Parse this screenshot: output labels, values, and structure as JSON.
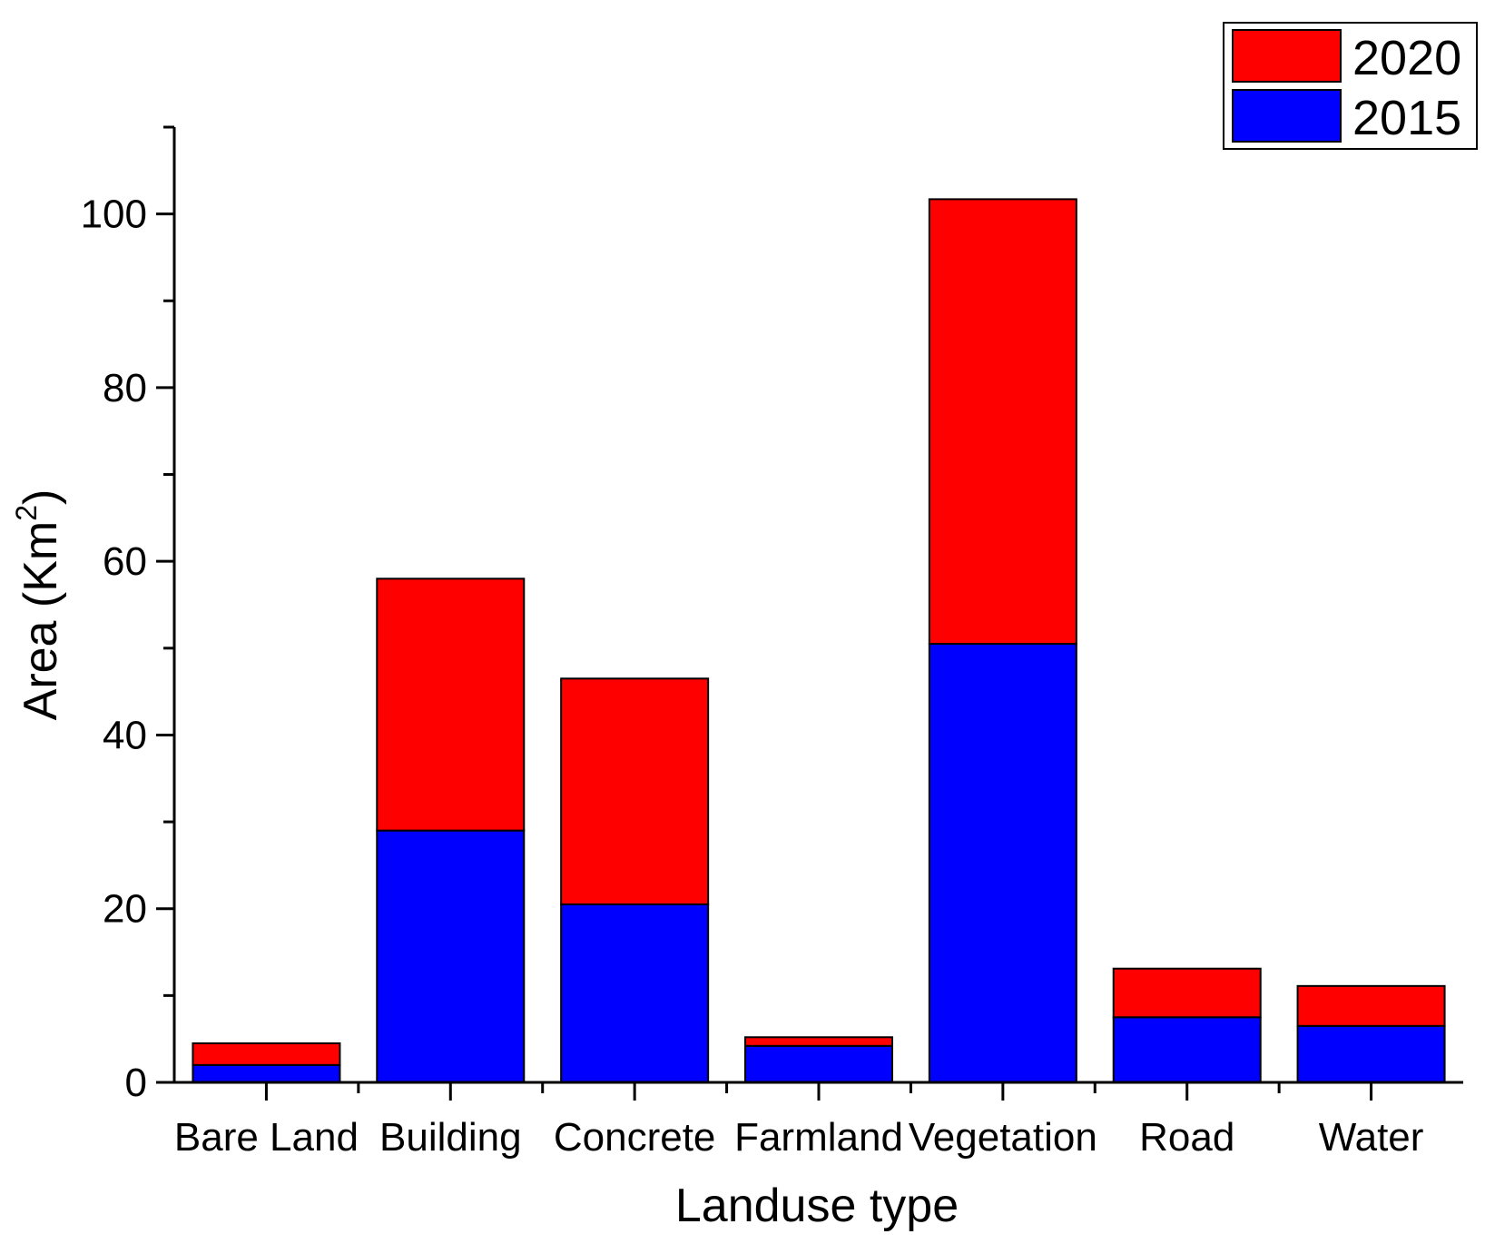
{
  "chart_data": {
    "type": "bar",
    "stacked": true,
    "title": "",
    "xlabel": "Landuse type",
    "ylabel": {
      "main": "Area (Km",
      "superscript": "2",
      "close": ")"
    },
    "categories": [
      "Bare Land",
      "Building",
      "Concrete",
      "Farmland",
      "Vegetation",
      "Road",
      "Water"
    ],
    "series": [
      {
        "name": "2015",
        "color": "#0000ff",
        "values": [
          2,
          29,
          20.5,
          4.2,
          50.5,
          7.5,
          6.5
        ]
      },
      {
        "name": "2020",
        "color": "#ff0000",
        "values": [
          2.5,
          29,
          26,
          1,
          51.2,
          5.6,
          4.6
        ]
      }
    ],
    "ylim": [
      0,
      110
    ],
    "yticks_major": [
      0,
      20,
      40,
      60,
      80,
      100
    ],
    "yticks_major_labels": [
      "0",
      "20",
      "40",
      "60",
      "80",
      "100"
    ],
    "yticks_minor": [
      10,
      30,
      50,
      70,
      90,
      110
    ],
    "legend": {
      "position": "top-right",
      "entries": [
        {
          "label": "2020",
          "color": "#ff0000"
        },
        {
          "label": "2015",
          "color": "#0000ff"
        }
      ]
    },
    "grid": false
  }
}
